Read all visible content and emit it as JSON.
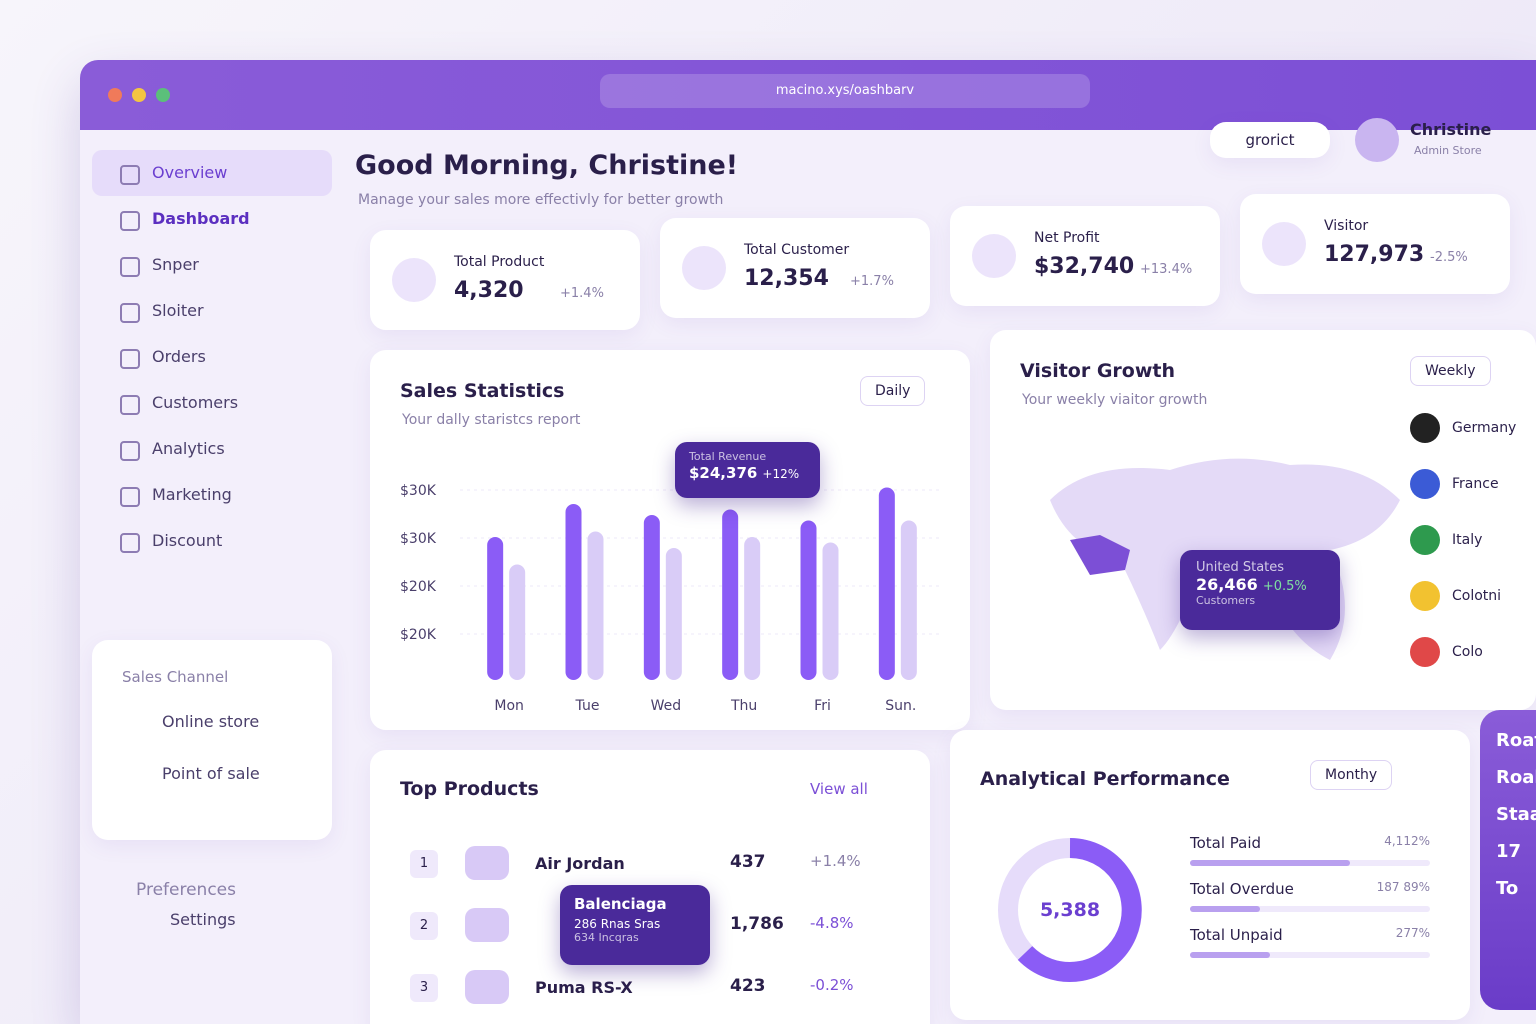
{
  "browser": {
    "url": "macino.xys/oashbarv"
  },
  "header": {
    "greeting": "Good Morning, Christine!",
    "subtitle": "Manage your sales more effectivly for better growth",
    "search": "grorict",
    "user_name": "Christine",
    "user_role": "Admin Store"
  },
  "sidebar": {
    "nav": [
      "Overview",
      "Dashboard",
      "Snper",
      "Sloiter",
      "Orders",
      "Customers",
      "Analytics",
      "Marketing",
      "Discount"
    ],
    "channel_title": "Sales Channel",
    "channels": [
      "Online store",
      "Point of sale"
    ],
    "preferences_title": "Preferences",
    "settings": "Settings"
  },
  "stats": [
    {
      "label": "Total Product",
      "value": "4,320",
      "change": "+1.4%"
    },
    {
      "label": "Total Customer",
      "value": "12,354",
      "change": "+1.7%"
    },
    {
      "label": "Net Profit",
      "value": "$32,740",
      "change": "+13.4%"
    },
    {
      "label": "Visitor",
      "value": "127,973",
      "change": "-2.5%"
    }
  ],
  "sales_statistics": {
    "title": "Sales Statistics",
    "subtitle": "Your dally staristcs report",
    "filter": "Daily",
    "y_labels": [
      "$30K",
      "$30K",
      "$20K",
      "$20K"
    ],
    "tooltip": {
      "title": "Total Revenue",
      "value": "$24,376",
      "change": "+12%"
    },
    "chart_data": {
      "type": "bar",
      "categories": [
        "Mon",
        "Tue",
        "Wed",
        "Thu",
        "Fri",
        "Sun."
      ],
      "ylim": [
        0,
        40
      ],
      "series": [
        {
          "color": "#8b5cf6",
          "values": [
            26,
            32,
            30,
            31,
            29,
            35
          ]
        },
        {
          "color": "#d9ccf7",
          "values": [
            21,
            27,
            24,
            26,
            25,
            29
          ]
        }
      ]
    }
  },
  "visitor_growth": {
    "title": "Visitor Growth",
    "subtitle": "Your weekly viaitor growth",
    "filter": "Weekly",
    "countries": [
      "Germany",
      "France",
      "Italy",
      "Colotni",
      "Colo"
    ],
    "tooltip": {
      "country": "United States",
      "value": "26,466",
      "change": "+0.5%",
      "caption": "Customers"
    }
  },
  "top_products": {
    "title": "Top Products",
    "view_all": "View all",
    "rows": [
      {
        "rank": "1",
        "name": "Air Jordan",
        "sales": "437",
        "change": "+1.4%"
      },
      {
        "rank": "2",
        "name": "",
        "sales": "1,786",
        "change": "-4.8%"
      },
      {
        "rank": "3",
        "name": "Puma RS-X",
        "sales": "423",
        "change": "-0.2%"
      }
    ],
    "tooltip": {
      "name": "Balenciaga",
      "line1": "286 Rnas Sras",
      "line2": "634 Incqras"
    }
  },
  "analytical_performance": {
    "title": "Analytical Performance",
    "filter": "Monthy",
    "total": "5,388",
    "rows": [
      {
        "label": "Total Paid",
        "value": "4,112%"
      },
      {
        "label": "Total Overdue",
        "value": "187 89%"
      },
      {
        "label": "Total Unpaid",
        "value": "277%"
      }
    ]
  },
  "side_card": {
    "lines": [
      "Roath",
      "Roah",
      "Staa",
      "17",
      "To"
    ]
  }
}
